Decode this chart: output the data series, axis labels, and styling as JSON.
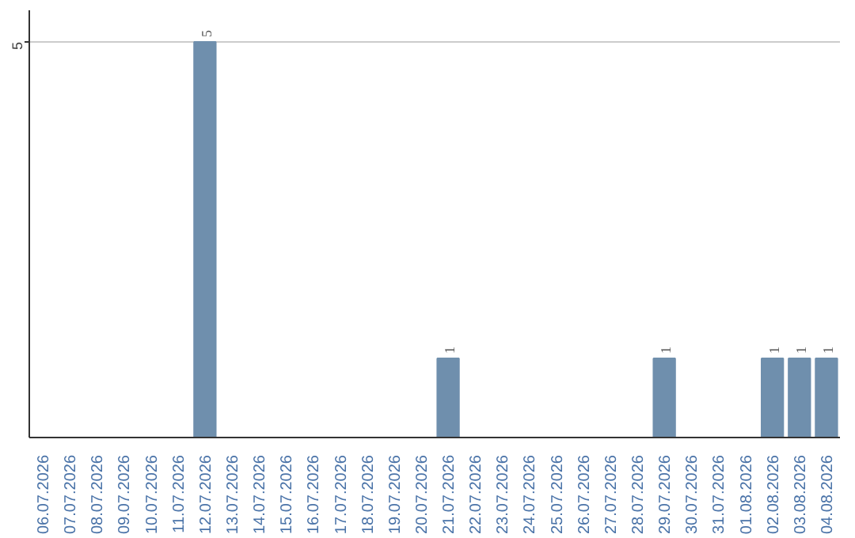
{
  "chart_data": {
    "type": "bar",
    "categories": [
      "06.07.2026",
      "07.07.2026",
      "08.07.2026",
      "09.07.2026",
      "10.07.2026",
      "11.07.2026",
      "12.07.2026",
      "13.07.2026",
      "14.07.2026",
      "15.07.2026",
      "16.07.2026",
      "17.07.2026",
      "18.07.2026",
      "19.07.2026",
      "20.07.2026",
      "21.07.2026",
      "22.07.2026",
      "23.07.2026",
      "24.07.2026",
      "25.07.2026",
      "26.07.2026",
      "27.07.2026",
      "28.07.2026",
      "29.07.2026",
      "30.07.2026",
      "31.07.2026",
      "01.08.2026",
      "02.08.2026",
      "03.08.2026",
      "04.08.2026"
    ],
    "values": [
      0,
      0,
      0,
      0,
      0,
      0,
      5,
      0,
      0,
      0,
      0,
      0,
      0,
      0,
      0,
      1,
      0,
      0,
      0,
      0,
      0,
      0,
      0,
      1,
      0,
      0,
      0,
      1,
      1,
      1
    ],
    "value_labels": [
      null,
      null,
      null,
      null,
      null,
      null,
      "5",
      null,
      null,
      null,
      null,
      null,
      null,
      null,
      null,
      "1",
      null,
      null,
      null,
      null,
      null,
      null,
      null,
      "1",
      null,
      null,
      null,
      "1",
      "1",
      "1"
    ],
    "color": "#6f8fad",
    "ylim": [
      0,
      5.4
    ],
    "yticks": [
      5
    ],
    "grid": "y"
  }
}
